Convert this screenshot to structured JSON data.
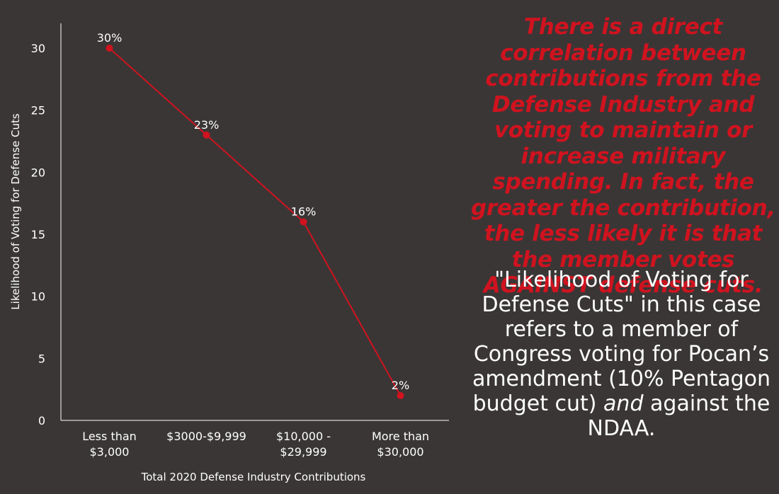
{
  "chart_data": {
    "type": "line",
    "categories": [
      [
        "Less than",
        "$3,000"
      ],
      [
        "$3000-$9,999"
      ],
      [
        "$10,000 -",
        "$29,999"
      ],
      [
        "More than",
        "$30,000"
      ]
    ],
    "values": [
      30,
      23,
      16,
      2
    ],
    "data_labels": [
      "30%",
      "23%",
      "16%",
      "2%"
    ],
    "ylim": [
      0,
      32
    ],
    "yticks": [
      0,
      5,
      10,
      15,
      20,
      25,
      30
    ],
    "xlabel": "Total 2020 Defense Industry Contributions",
    "ylabel": "Likelihood of Voting for Defense Cuts",
    "line_color": "#d0131f",
    "grid": false
  },
  "notes": {
    "highlight": "There is a direct correlation between contributions from the Defense Industry and voting to maintain or increase military spending. In fact, the greater the contribution, the less likely it is that the member votes AGAINST defense cuts.",
    "definition_part1": "\"Likelihood of Voting for Defense Cuts\" in this case refers to a member of Congress voting for Pocan’s amendment (10% Pentagon budget cut) ",
    "definition_emphasis": "and",
    "definition_part2": " against the NDAA."
  },
  "colors": {
    "background": "#3a3636",
    "accent": "#d0131f",
    "text": "#ffffff"
  }
}
